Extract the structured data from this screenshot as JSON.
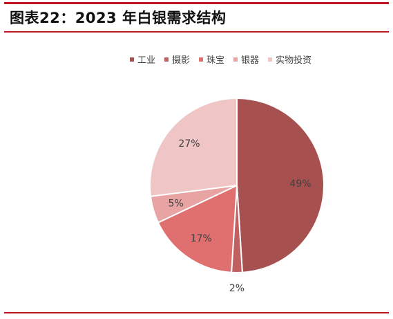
{
  "figure_title": "图表22：2023 年白银需求结构",
  "chart_data": {
    "type": "pie",
    "title": "",
    "categories": [
      "工业",
      "摄影",
      "珠宝",
      "银器",
      "实物投资"
    ],
    "values": [
      49,
      2,
      17,
      5,
      27
    ],
    "value_labels": [
      "49%",
      "2%",
      "17%",
      "5%",
      "27%"
    ],
    "colors": [
      "#a75050",
      "#c06060",
      "#e07070",
      "#e8a3a3",
      "#efc5c5"
    ],
    "start": "12 o'clock",
    "direction": "clockwise",
    "legend_position": "top"
  }
}
